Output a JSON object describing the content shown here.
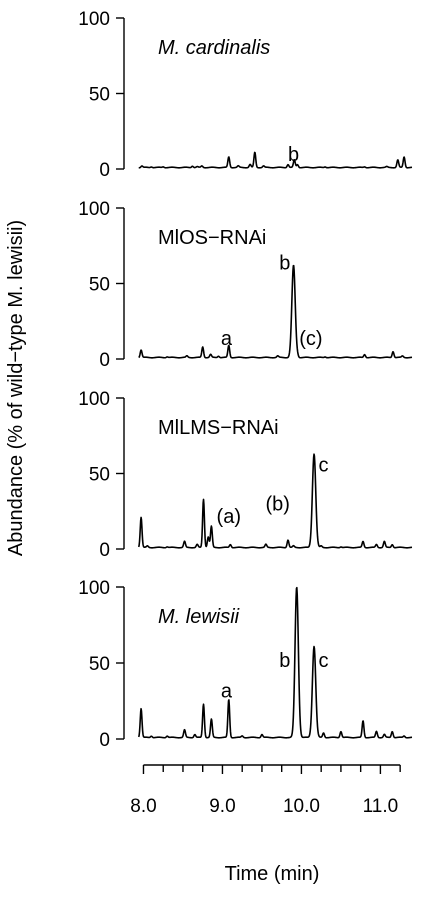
{
  "chart_data": {
    "type": "line",
    "xlabel": "Time (min)",
    "ylabel": "Abundance (% of wild−type M. lewisii)",
    "xlim": [
      7.88,
      11.4
    ],
    "x_ticks": [
      8.0,
      9.0,
      10.0,
      11.0
    ],
    "x_tick_labels": [
      "8.0",
      "9.0",
      "10.0",
      "11.0"
    ],
    "x_minor_ticks": [
      8.0,
      8.25,
      8.5,
      8.75,
      9.0,
      9.25,
      9.5,
      9.75,
      10.0,
      10.25,
      10.5,
      10.75,
      11.0,
      11.25
    ],
    "ylim": [
      0,
      100
    ],
    "y_ticks": [
      0,
      50,
      100
    ],
    "y_tick_labels": [
      "0",
      "50",
      "100"
    ],
    "panels": [
      {
        "label": "M. cardinalis",
        "italic": true,
        "baseline": 1,
        "peaks": [
          {
            "x": 7.98,
            "y": 2
          },
          {
            "x": 8.1,
            "y": 1.5
          },
          {
            "x": 8.25,
            "y": 1.5
          },
          {
            "x": 8.62,
            "y": 2
          },
          {
            "x": 8.68,
            "y": 1.5
          },
          {
            "x": 8.74,
            "y": 2
          },
          {
            "x": 9.08,
            "y": 8
          },
          {
            "x": 9.2,
            "y": 2
          },
          {
            "x": 9.35,
            "y": 3
          },
          {
            "x": 9.41,
            "y": 11
          },
          {
            "x": 9.52,
            "y": 2
          },
          {
            "x": 9.83,
            "y": 3
          },
          {
            "x": 9.91,
            "y": 6
          },
          {
            "x": 9.95,
            "y": 3
          },
          {
            "x": 10.3,
            "y": 1.5
          },
          {
            "x": 10.8,
            "y": 1.5
          },
          {
            "x": 11.08,
            "y": 1.5
          },
          {
            "x": 11.22,
            "y": 6
          },
          {
            "x": 11.3,
            "y": 8
          }
        ],
        "annotations": [
          {
            "text": "b",
            "x": 9.9,
            "y": 10
          }
        ]
      },
      {
        "label": "MlOS−RNAi",
        "italic": false,
        "baseline": 1,
        "peaks": [
          {
            "x": 7.9,
            "y": 3
          },
          {
            "x": 7.97,
            "y": 6
          },
          {
            "x": 8.3,
            "y": 1.5
          },
          {
            "x": 8.55,
            "y": 2
          },
          {
            "x": 8.75,
            "y": 8
          },
          {
            "x": 8.85,
            "y": 3
          },
          {
            "x": 8.95,
            "y": 2
          },
          {
            "x": 9.08,
            "y": 9
          },
          {
            "x": 9.7,
            "y": 2
          },
          {
            "x": 9.9,
            "y": 62
          },
          {
            "x": 9.95,
            "y": 2
          },
          {
            "x": 10.3,
            "y": 1.5
          },
          {
            "x": 10.8,
            "y": 3
          },
          {
            "x": 11.16,
            "y": 5
          },
          {
            "x": 11.28,
            "y": 2
          }
        ],
        "annotations": [
          {
            "text": "a",
            "x": 9.05,
            "y": 14
          },
          {
            "text": "b",
            "x": 9.79,
            "y": 64
          },
          {
            "text": "(c)",
            "x": 10.12,
            "y": 14
          }
        ]
      },
      {
        "label": "MlLMS−RNAi",
        "italic": false,
        "baseline": 1,
        "peaks": [
          {
            "x": 7.9,
            "y": 3
          },
          {
            "x": 7.97,
            "y": 21
          },
          {
            "x": 8.05,
            "y": 2
          },
          {
            "x": 8.3,
            "y": 1.5
          },
          {
            "x": 8.52,
            "y": 5
          },
          {
            "x": 8.68,
            "y": 3
          },
          {
            "x": 8.76,
            "y": 33
          },
          {
            "x": 8.82,
            "y": 8
          },
          {
            "x": 8.86,
            "y": 15
          },
          {
            "x": 9.1,
            "y": 3
          },
          {
            "x": 9.55,
            "y": 3
          },
          {
            "x": 9.83,
            "y": 6
          },
          {
            "x": 9.9,
            "y": 2
          },
          {
            "x": 10.16,
            "y": 63
          },
          {
            "x": 10.25,
            "y": 2
          },
          {
            "x": 10.5,
            "y": 1.5
          },
          {
            "x": 10.78,
            "y": 5
          },
          {
            "x": 10.95,
            "y": 3
          },
          {
            "x": 11.05,
            "y": 5
          },
          {
            "x": 11.15,
            "y": 3
          }
        ],
        "annotations": [
          {
            "text": "(a)",
            "x": 9.08,
            "y": 22
          },
          {
            "text": "(b)",
            "x": 9.7,
            "y": 30
          },
          {
            "text": "c",
            "x": 10.28,
            "y": 56
          }
        ]
      },
      {
        "label": "M. lewisii",
        "italic": true,
        "baseline": 1,
        "peaks": [
          {
            "x": 7.9,
            "y": 3
          },
          {
            "x": 7.97,
            "y": 20
          },
          {
            "x": 8.1,
            "y": 2
          },
          {
            "x": 8.3,
            "y": 2
          },
          {
            "x": 8.52,
            "y": 6
          },
          {
            "x": 8.65,
            "y": 3
          },
          {
            "x": 8.76,
            "y": 23
          },
          {
            "x": 8.86,
            "y": 13
          },
          {
            "x": 9.08,
            "y": 26
          },
          {
            "x": 9.25,
            "y": 2
          },
          {
            "x": 9.5,
            "y": 3
          },
          {
            "x": 9.94,
            "y": 100
          },
          {
            "x": 10.16,
            "y": 61
          },
          {
            "x": 10.28,
            "y": 4
          },
          {
            "x": 10.5,
            "y": 5
          },
          {
            "x": 10.78,
            "y": 12
          },
          {
            "x": 10.95,
            "y": 5
          },
          {
            "x": 11.05,
            "y": 3
          },
          {
            "x": 11.15,
            "y": 5
          },
          {
            "x": 11.3,
            "y": 2
          }
        ],
        "annotations": [
          {
            "text": "a",
            "x": 9.05,
            "y": 32
          },
          {
            "text": "b",
            "x": 9.79,
            "y": 52
          },
          {
            "text": "c",
            "x": 10.28,
            "y": 52
          }
        ]
      }
    ]
  }
}
